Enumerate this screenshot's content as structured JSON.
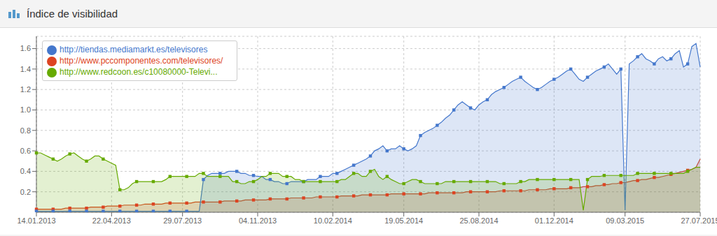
{
  "chart_data": {
    "type": "area",
    "title": "Índice de visibilidad",
    "categories": [
      "14.01.2013",
      null,
      null,
      null,
      null,
      null,
      null,
      null,
      null,
      null,
      null,
      null,
      null,
      null,
      null,
      null,
      null,
      null,
      "22.04.2013",
      null,
      null,
      null,
      null,
      null,
      null,
      null,
      null,
      null,
      null,
      null,
      null,
      null,
      null,
      null,
      null,
      "29.07.2013",
      null,
      null,
      null,
      null,
      null,
      null,
      null,
      null,
      null,
      null,
      null,
      null,
      null,
      null,
      null,
      null,
      null,
      "04.11.2013",
      null,
      null,
      null,
      null,
      null,
      null,
      null,
      null,
      null,
      null,
      null,
      null,
      null,
      null,
      null,
      null,
      null,
      "10.02.2014",
      null,
      null,
      null,
      null,
      null,
      null,
      null,
      null,
      null,
      null,
      null,
      null,
      null,
      null,
      null,
      null,
      "19.05.2014",
      null,
      null,
      null,
      null,
      null,
      null,
      null,
      null,
      null,
      null,
      null,
      null,
      null,
      null,
      null,
      null,
      null,
      "25.08.2014",
      null,
      null,
      null,
      null,
      null,
      null,
      null,
      null,
      null,
      null,
      null,
      null,
      null,
      null,
      null,
      null,
      null,
      "01.12.2014",
      null,
      null,
      null,
      null,
      null,
      null,
      null,
      null,
      null,
      null,
      null,
      null,
      null,
      null,
      null,
      null,
      "09.03.2015",
      null,
      null,
      null,
      null,
      null,
      null,
      null,
      null,
      null,
      null,
      null,
      null,
      null,
      null,
      null,
      null,
      null,
      "27.07.2015"
    ],
    "series": [
      {
        "name": "http://www.pccomponentes.com/televisores/",
        "color": "#dd4422",
        "marker": "square",
        "values": [
          0.03,
          0.03,
          0.03,
          0.03,
          0.03,
          0.03,
          0.03,
          0.04,
          0.04,
          0.04,
          0.04,
          0.04,
          0.04,
          0.05,
          0.05,
          0.05,
          0.05,
          0.06,
          0.06,
          0.06,
          0.06,
          0.07,
          0.07,
          0.07,
          0.07,
          0.07,
          0.08,
          0.08,
          0.08,
          0.08,
          0.08,
          0.09,
          0.09,
          0.09,
          0.09,
          0.09,
          0.09,
          0.09,
          0.1,
          0.1,
          0.1,
          0.1,
          0.1,
          0.1,
          0.1,
          0.11,
          0.11,
          0.11,
          0.11,
          0.11,
          0.12,
          0.12,
          0.12,
          0.12,
          0.12,
          0.12,
          0.13,
          0.13,
          0.13,
          0.13,
          0.13,
          0.14,
          0.14,
          0.14,
          0.14,
          0.14,
          0.14,
          0.15,
          0.15,
          0.15,
          0.15,
          0.15,
          0.15,
          0.16,
          0.16,
          0.16,
          0.16,
          0.16,
          0.17,
          0.17,
          0.17,
          0.17,
          0.17,
          0.17,
          0.17,
          0.18,
          0.18,
          0.18,
          0.18,
          0.18,
          0.18,
          0.18,
          0.18,
          0.18,
          0.19,
          0.19,
          0.19,
          0.19,
          0.19,
          0.19,
          0.19,
          0.19,
          0.19,
          0.2,
          0.2,
          0.2,
          0.2,
          0.2,
          0.2,
          0.2,
          0.2,
          0.21,
          0.21,
          0.21,
          0.21,
          0.21,
          0.21,
          0.21,
          0.22,
          0.22,
          0.22,
          0.22,
          0.22,
          0.23,
          0.23,
          0.23,
          0.23,
          0.23,
          0.24,
          0.24,
          0.24,
          0.25,
          0.25,
          0.25,
          0.26,
          0.26,
          0.27,
          0.27,
          0.28,
          0.28,
          0.29,
          0.29,
          0.3,
          0.31,
          0.31,
          0.32,
          0.32,
          0.33,
          0.34,
          0.34,
          0.35,
          0.36,
          0.37,
          0.38,
          0.39,
          0.4,
          0.41,
          0.42,
          0.44,
          0.52
        ]
      },
      {
        "name": "http://tiendas.mediamarkt.es/televisores",
        "color": "#4477cc",
        "marker": "square",
        "values": [
          0.01,
          0.01,
          0.01,
          0.01,
          0.01,
          0.01,
          0.01,
          0.01,
          0.01,
          0.01,
          0.01,
          0.01,
          0.01,
          0.01,
          0.01,
          0.01,
          0.01,
          0.01,
          0.01,
          0.01,
          0.01,
          0.01,
          0.01,
          0.01,
          0.01,
          0.01,
          0.01,
          0.01,
          0.01,
          0.01,
          0.01,
          0.01,
          0.01,
          0.01,
          0.01,
          0.01,
          0.01,
          0.01,
          0.01,
          0.01,
          0.32,
          0.36,
          0.38,
          0.38,
          0.38,
          0.38,
          0.4,
          0.4,
          0.4,
          0.38,
          0.38,
          0.36,
          0.36,
          0.35,
          0.35,
          0.32,
          0.32,
          0.3,
          0.3,
          0.28,
          0.28,
          0.3,
          0.3,
          0.3,
          0.3,
          0.32,
          0.32,
          0.32,
          0.35,
          0.35,
          0.35,
          0.38,
          0.38,
          0.4,
          0.42,
          0.44,
          0.46,
          0.48,
          0.5,
          0.52,
          0.55,
          0.6,
          0.62,
          0.65,
          0.6,
          0.62,
          0.62,
          0.65,
          0.62,
          0.6,
          0.62,
          0.65,
          0.75,
          0.78,
          0.8,
          0.82,
          0.85,
          0.88,
          0.92,
          0.95,
          1.0,
          1.05,
          1.08,
          1.05,
          1.02,
          1.0,
          1.05,
          1.08,
          1.1,
          1.15,
          1.18,
          1.2,
          1.22,
          1.25,
          1.28,
          1.3,
          1.32,
          1.28,
          1.25,
          1.22,
          1.2,
          1.22,
          1.25,
          1.28,
          1.3,
          1.32,
          1.35,
          1.38,
          1.4,
          1.35,
          1.3,
          1.28,
          1.32,
          1.35,
          1.38,
          1.4,
          1.42,
          1.45,
          1.4,
          1.35,
          1.4,
          0.02,
          1.45,
          1.48,
          1.52,
          1.55,
          1.5,
          1.48,
          1.45,
          1.5,
          1.52,
          1.48,
          1.5,
          1.55,
          1.58,
          1.42,
          1.45,
          1.62,
          1.65,
          1.42
        ]
      },
      {
        "name": "http://www.redcoon.es/c10080000-Televi...",
        "color": "#66aa00",
        "marker": "square",
        "values": [
          0.58,
          0.58,
          0.56,
          0.54,
          0.52,
          0.5,
          0.52,
          0.55,
          0.57,
          0.58,
          0.55,
          0.52,
          0.5,
          0.52,
          0.55,
          0.55,
          0.52,
          0.5,
          0.48,
          0.46,
          0.22,
          0.22,
          0.24,
          0.28,
          0.3,
          0.3,
          0.3,
          0.3,
          0.3,
          0.3,
          0.3,
          0.32,
          0.35,
          0.35,
          0.35,
          0.35,
          0.35,
          0.35,
          0.35,
          0.38,
          0.38,
          0.35,
          0.35,
          0.35,
          0.35,
          0.35,
          0.35,
          0.3,
          0.3,
          0.28,
          0.28,
          0.3,
          0.3,
          0.32,
          0.35,
          0.35,
          0.38,
          0.38,
          0.38,
          0.35,
          0.35,
          0.35,
          0.32,
          0.32,
          0.3,
          0.3,
          0.3,
          0.3,
          0.3,
          0.3,
          0.3,
          0.3,
          0.3,
          0.32,
          0.32,
          0.35,
          0.38,
          0.38,
          0.35,
          0.35,
          0.4,
          0.42,
          0.35,
          0.32,
          0.35,
          0.32,
          0.3,
          0.28,
          0.28,
          0.3,
          0.32,
          0.32,
          0.3,
          0.28,
          0.28,
          0.28,
          0.28,
          0.28,
          0.3,
          0.3,
          0.3,
          0.3,
          0.3,
          0.3,
          0.3,
          0.3,
          0.3,
          0.3,
          0.3,
          0.3,
          0.3,
          0.28,
          0.28,
          0.28,
          0.28,
          0.28,
          0.3,
          0.3,
          0.32,
          0.32,
          0.32,
          0.32,
          0.32,
          0.32,
          0.32,
          0.32,
          0.32,
          0.32,
          0.32,
          0.32,
          0.32,
          0.02,
          0.32,
          0.35,
          0.35,
          0.35,
          0.36,
          0.36,
          0.36,
          0.36,
          0.36,
          0.36,
          0.36,
          0.36,
          0.38,
          0.38,
          0.38,
          0.38,
          0.38,
          0.38,
          0.38,
          0.38,
          0.38,
          0.38,
          0.38,
          0.38,
          0.4,
          0.42,
          0.44,
          0.44
        ]
      }
    ],
    "ylim": [
      0,
      1.72
    ],
    "yticks": [
      0.2,
      0.4,
      0.6,
      0.8,
      {
        "value": 1.0,
        "label": "1.0"
      },
      1.2,
      1.4,
      1.6
    ],
    "grid": true,
    "legend": "upper left"
  }
}
